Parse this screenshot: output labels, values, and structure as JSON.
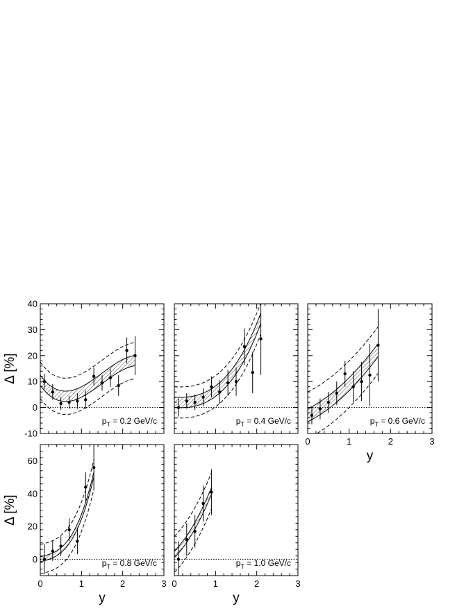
{
  "chart_data": [
    {
      "type": "scatter",
      "pt_label": "0.2 GeV/c",
      "ylabel": "Δ [%]",
      "xlabel": "",
      "xlim": [
        0,
        3
      ],
      "ylim": [
        -10,
        40
      ],
      "xticks": [],
      "yticks": [
        -10,
        0,
        10,
        20,
        30,
        40
      ],
      "points": [
        {
          "x": 0.1,
          "y": 10,
          "err": 3
        },
        {
          "x": 0.3,
          "y": 6,
          "err": 3
        },
        {
          "x": 0.5,
          "y": 1.5,
          "err": 2.5
        },
        {
          "x": 0.7,
          "y": 2,
          "err": 2.5
        },
        {
          "x": 0.9,
          "y": 2.5,
          "err": 3
        },
        {
          "x": 1.1,
          "y": 3,
          "err": 3.5
        },
        {
          "x": 1.3,
          "y": 12,
          "err": 3.5
        },
        {
          "x": 1.5,
          "y": 9.5,
          "err": 3
        },
        {
          "x": 1.7,
          "y": 11.5,
          "err": 3.5
        },
        {
          "x": 1.9,
          "y": 8.5,
          "err": 4
        },
        {
          "x": 2.1,
          "y": 22,
          "err": 5
        },
        {
          "x": 2.3,
          "y": 20,
          "err": 7.5
        }
      ],
      "fit": {
        "x0": 0,
        "x1": 2.3,
        "coef": [
          10.5,
          -22,
          22.5,
          -5
        ],
        "band": 2,
        "outer": 7
      }
    },
    {
      "type": "scatter",
      "pt_label": "0.4 GeV/c",
      "ylabel": "",
      "xlabel": "",
      "xlim": [
        0,
        3
      ],
      "ylim": [
        -10,
        40
      ],
      "xticks": [],
      "yticks": [],
      "points": [
        {
          "x": 0.1,
          "y": 0,
          "err": 3.5
        },
        {
          "x": 0.3,
          "y": 2.5,
          "err": 3
        },
        {
          "x": 0.5,
          "y": 2,
          "err": 3
        },
        {
          "x": 0.7,
          "y": 4,
          "err": 3.5
        },
        {
          "x": 0.9,
          "y": 8,
          "err": 4
        },
        {
          "x": 1.1,
          "y": 6,
          "err": 4.5
        },
        {
          "x": 1.3,
          "y": 9.5,
          "err": 5
        },
        {
          "x": 1.5,
          "y": 10,
          "err": 5.5
        },
        {
          "x": 1.7,
          "y": 23.5,
          "err": 7
        },
        {
          "x": 1.9,
          "y": 13.5,
          "err": 8
        },
        {
          "x": 2.1,
          "y": 26.5,
          "err": 14
        }
      ],
      "fit": {
        "x0": 0,
        "x1": 2.1,
        "coef": [
          2,
          -1,
          3,
          2.3
        ],
        "band": 2,
        "outer": 6
      }
    },
    {
      "type": "scatter",
      "pt_label": "0.6 GeV/c",
      "ylabel": "",
      "xlabel": "y",
      "xlim": [
        0,
        3
      ],
      "ylim": [
        -10,
        40
      ],
      "xticks": [
        0,
        1,
        2,
        3
      ],
      "yticks": [],
      "points": [
        {
          "x": 0.1,
          "y": -3,
          "err": 3.5
        },
        {
          "x": 0.3,
          "y": -0.5,
          "err": 4
        },
        {
          "x": 0.5,
          "y": 2,
          "err": 4
        },
        {
          "x": 0.7,
          "y": 5.5,
          "err": 4.5
        },
        {
          "x": 0.9,
          "y": 13,
          "err": 5
        },
        {
          "x": 1.1,
          "y": 8,
          "err": 6
        },
        {
          "x": 1.3,
          "y": 10,
          "err": 7.5
        },
        {
          "x": 1.5,
          "y": 12.5,
          "err": 12
        },
        {
          "x": 1.7,
          "y": 24,
          "err": 14
        }
      ],
      "fit": {
        "x0": 0,
        "x1": 1.7,
        "coef": [
          -3,
          8,
          4,
          0
        ],
        "band": 2.5,
        "outer": 9
      }
    },
    {
      "type": "scatter",
      "pt_label": "0.8 GeV/c",
      "ylabel": "Δ [%]",
      "xlabel": "y",
      "xlim": [
        0,
        3
      ],
      "ylim": [
        -10,
        70
      ],
      "xticks": [
        0,
        1,
        2,
        3
      ],
      "yticks": [
        0,
        20,
        40,
        60
      ],
      "points": [
        {
          "x": 0.1,
          "y": 0,
          "err": 9
        },
        {
          "x": 0.3,
          "y": 5,
          "err": 6
        },
        {
          "x": 0.5,
          "y": 8,
          "err": 6
        },
        {
          "x": 0.7,
          "y": 18,
          "err": 7
        },
        {
          "x": 0.9,
          "y": 11,
          "err": 8
        },
        {
          "x": 1.1,
          "y": 44,
          "err": 9
        },
        {
          "x": 1.3,
          "y": 56,
          "err": 14
        }
      ],
      "fit": {
        "x0": 0,
        "x1": 1.3,
        "coef": [
          0,
          6,
          0,
          20
        ],
        "band": 1.5,
        "outer": 9
      }
    },
    {
      "type": "scatter",
      "pt_label": "1.0 GeV/c",
      "ylabel": "",
      "xlabel": "y",
      "xlim": [
        0,
        3
      ],
      "ylim": [
        -10,
        70
      ],
      "xticks": [
        0,
        1,
        2,
        3
      ],
      "yticks": [],
      "points": [
        {
          "x": 0.1,
          "y": 0,
          "err": 11
        },
        {
          "x": 0.3,
          "y": 12,
          "err": 10
        },
        {
          "x": 0.5,
          "y": 17,
          "err": 10
        },
        {
          "x": 0.7,
          "y": 34,
          "err": 11
        },
        {
          "x": 0.9,
          "y": 41,
          "err": 14
        }
      ],
      "fit": {
        "x0": 0,
        "x1": 0.9,
        "coef": [
          3,
          25,
          20,
          0
        ],
        "band": 2,
        "outer": 11
      }
    }
  ]
}
